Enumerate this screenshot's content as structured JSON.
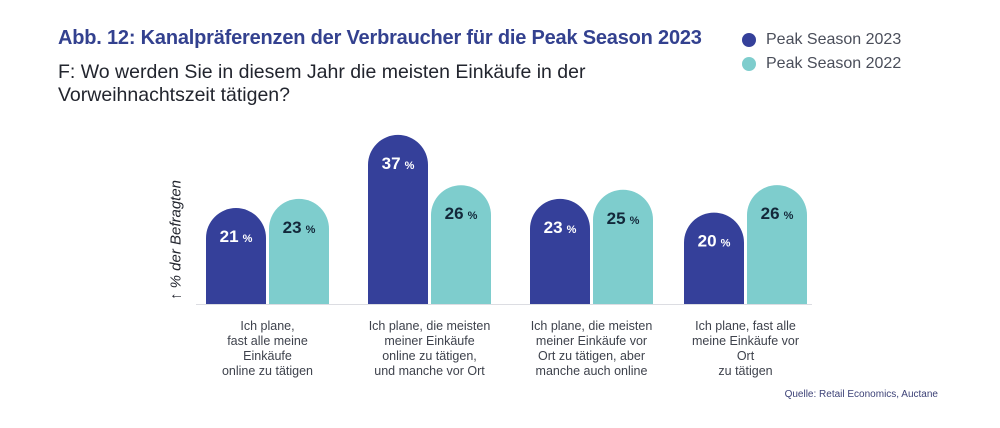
{
  "header": {
    "title": "Abb. 12: Kanalpräferenzen der Verbraucher für die Peak Season 2023",
    "question": "F: Wo werden Sie in diesem Jahr die meisten Einkäufe in der Vorweihnachtszeit tätigen?"
  },
  "source": "Quelle: Retail Economics, Auctane",
  "chart_data": {
    "type": "bar",
    "title": "Abb. 12: Kanalpräferenzen der Verbraucher für die Peak Season 2023",
    "subtitle": "F: Wo werden Sie in diesem Jahr die meisten Einkäufe in der Vorweihnachtszeit tätigen?",
    "xlabel": "",
    "ylabel": "↑ % der Befragten",
    "ylim": [
      0,
      40
    ],
    "grid": false,
    "legend_position": "top-right",
    "unit": "%",
    "categories": [
      "Ich plane,\nfast alle meine\nEinkäufe\nonline zu tätigen",
      "Ich plane, die meisten\nmeiner Einkäufe\nonline zu tätigen,\nund manche vor Ort",
      "Ich plane, die meisten\nmeiner Einkäufe vor\nOrt zu tätigen, aber\nmanche auch online",
      "Ich plane, fast alle\nmeine Einkäufe vor\nOrt\nzu tätigen"
    ],
    "series": [
      {
        "name": "Peak Season 2023",
        "color": "#35409a",
        "label_color": "#ffffff",
        "values": [
          21,
          37,
          23,
          20
        ]
      },
      {
        "name": "Peak Season 2022",
        "color": "#7ecdcd",
        "label_color": "#13283a",
        "values": [
          23,
          26,
          25,
          26
        ]
      }
    ]
  }
}
